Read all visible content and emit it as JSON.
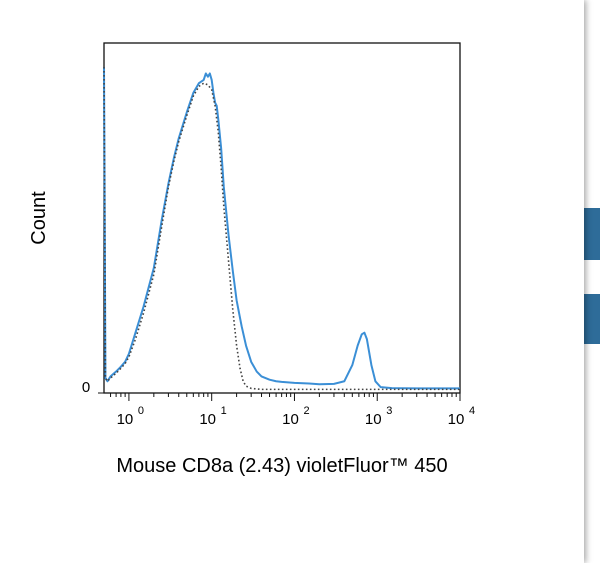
{
  "chart_data": {
    "type": "line",
    "xlabel": "Mouse CD8a (2.43) violetFluor™ 450",
    "ylabel": "Count",
    "x_scale": "log",
    "xlim": [
      0.5,
      10000
    ],
    "ylim": [
      0,
      100
    ],
    "x_tick_labels": [
      "10",
      "10",
      "10",
      "10",
      "10"
    ],
    "x_tick_exponents": [
      "0",
      "1",
      "2",
      "3",
      "4"
    ],
    "y_tick_labels": [
      "0"
    ],
    "series": [
      {
        "style": "solid",
        "color": "#3b8fd6",
        "points": [
          [
            0.5,
            100
          ],
          [
            0.51,
            55
          ],
          [
            0.52,
            4
          ],
          [
            0.55,
            3
          ],
          [
            0.6,
            4.5
          ],
          [
            0.7,
            6
          ],
          [
            0.8,
            7.5
          ],
          [
            0.9,
            9
          ],
          [
            1.0,
            11.5
          ],
          [
            1.2,
            18
          ],
          [
            1.5,
            26
          ],
          [
            2.0,
            38
          ],
          [
            2.5,
            53
          ],
          [
            3.0,
            64
          ],
          [
            3.5,
            72
          ],
          [
            4.0,
            78
          ],
          [
            5.0,
            86
          ],
          [
            6.0,
            92
          ],
          [
            7.0,
            95
          ],
          [
            8.0,
            96
          ],
          [
            8.5,
            98
          ],
          [
            9.0,
            97
          ],
          [
            9.5,
            98
          ],
          [
            10.0,
            96
          ],
          [
            10.5,
            92
          ],
          [
            11.0,
            89
          ],
          [
            11.5,
            88
          ],
          [
            12.0,
            84
          ],
          [
            13.0,
            75
          ],
          [
            14.0,
            63
          ],
          [
            16.0,
            48
          ],
          [
            18.0,
            37
          ],
          [
            20.0,
            28
          ],
          [
            23.0,
            20
          ],
          [
            26.0,
            14
          ],
          [
            30.0,
            9
          ],
          [
            35.0,
            6
          ],
          [
            40.0,
            4.5
          ],
          [
            50.0,
            3.5
          ],
          [
            60.0,
            3
          ],
          [
            70.0,
            2.8
          ],
          [
            100.0,
            2.5
          ],
          [
            150.0,
            2.3
          ],
          [
            200.0,
            2.1
          ],
          [
            300.0,
            2.2
          ],
          [
            400.0,
            3
          ],
          [
            500.0,
            8
          ],
          [
            580.0,
            14
          ],
          [
            650.0,
            17.5
          ],
          [
            700.0,
            18
          ],
          [
            750.0,
            16
          ],
          [
            850.0,
            8
          ],
          [
            950.0,
            3
          ],
          [
            1100.0,
            1.2
          ],
          [
            1500.0,
            0.9
          ],
          [
            3000.0,
            0.8
          ],
          [
            10000.0,
            0.8
          ]
        ]
      },
      {
        "style": "dotted",
        "color": "#444444",
        "points": [
          [
            0.5,
            100
          ],
          [
            0.51,
            55
          ],
          [
            0.52,
            4
          ],
          [
            0.55,
            3
          ],
          [
            0.6,
            4
          ],
          [
            0.7,
            5.5
          ],
          [
            0.8,
            7
          ],
          [
            0.9,
            8.5
          ],
          [
            1.0,
            10.5
          ],
          [
            1.2,
            16
          ],
          [
            1.5,
            24
          ],
          [
            2.0,
            36
          ],
          [
            2.5,
            51
          ],
          [
            3.0,
            63
          ],
          [
            3.5,
            71
          ],
          [
            4.0,
            77
          ],
          [
            5.0,
            85
          ],
          [
            6.0,
            91
          ],
          [
            7.0,
            94
          ],
          [
            8.0,
            95
          ],
          [
            9.0,
            94.5
          ],
          [
            10.0,
            93
          ],
          [
            11.0,
            88
          ],
          [
            12.0,
            80
          ],
          [
            13.0,
            69
          ],
          [
            14.0,
            57
          ],
          [
            16.0,
            40
          ],
          [
            18.0,
            25
          ],
          [
            20.0,
            14
          ],
          [
            22.0,
            7
          ],
          [
            24.0,
            3
          ],
          [
            26.0,
            1.5
          ],
          [
            30.0,
            0.8
          ],
          [
            40.0,
            0.5
          ],
          [
            10000.0,
            0.5
          ]
        ]
      }
    ]
  }
}
